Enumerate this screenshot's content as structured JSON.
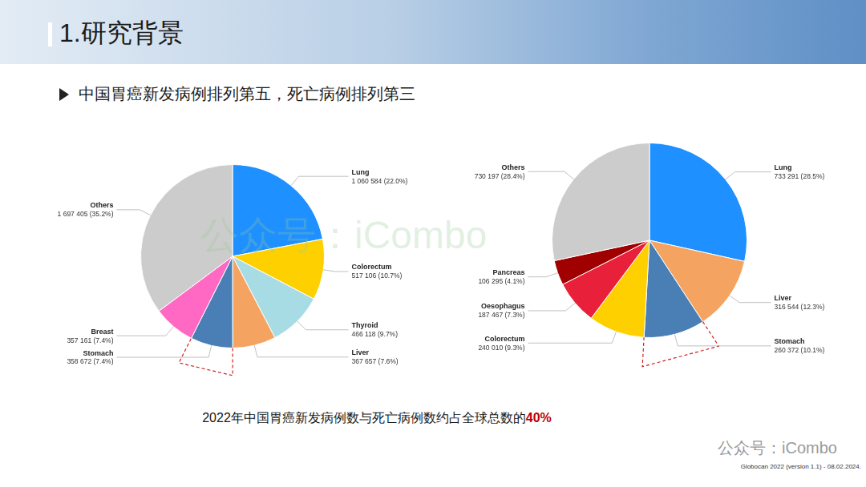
{
  "header": {
    "title": "1.研究背景",
    "subtitle": "中国胃癌新发病例排列第五，死亡病例排列第三"
  },
  "chart_data": [
    {
      "type": "pie",
      "categories": [
        "Lung",
        "Colorectum",
        "Thyroid",
        "Liver",
        "Stomach",
        "Breast",
        "Others"
      ],
      "values": [
        1060584,
        517106,
        466118,
        367657,
        358672,
        357161,
        1697405
      ],
      "value_labels": [
        "1 060 584 (22.0%)",
        "517 106 (10.7%)",
        "466 118 (9.7%)",
        "367 657 (7.6%)",
        "358 672 (7.4%)",
        "357 161 (7.4%)",
        "1 697 405 (35.2%)"
      ],
      "colors": [
        "#1e90ff",
        "#ffd000",
        "#a8dce5",
        "#f4a460",
        "#4a7fb5",
        "#ff69c4",
        "#cccccc"
      ],
      "data_labels": true
    },
    {
      "type": "pie",
      "categories": [
        "Lung",
        "Liver",
        "Stomach",
        "Colorectum",
        "Oesophagus",
        "Pancreas",
        "Others"
      ],
      "values": [
        733291,
        316544,
        260372,
        240010,
        187467,
        106295,
        730197
      ],
      "value_labels": [
        "733 291 (28.5%)",
        "316 544 (12.3%)",
        "260 372 (10.1%)",
        "240 010 (9.3%)",
        "187 467 (7.3%)",
        "106 295 (4.1%)",
        "730 197 (28.4%)"
      ],
      "colors": [
        "#1e90ff",
        "#f4a460",
        "#4a7fb5",
        "#ffd000",
        "#e8203a",
        "#a00000",
        "#cccccc"
      ],
      "data_labels": true
    }
  ],
  "footer": {
    "note": "2022年中国胃癌新发病例数与死亡病例数约占全球总数的",
    "note_highlight": "40%",
    "source": "Globocan 2022 (version 1.1) - 08.02.2024.",
    "watermarks": [
      "公众号：iCombo",
      "公众号：iCombo"
    ]
  }
}
